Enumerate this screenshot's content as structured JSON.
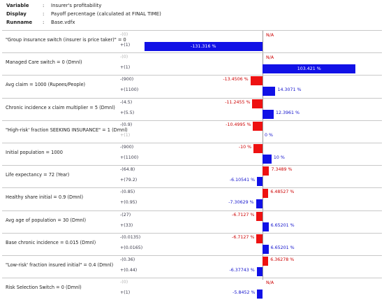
{
  "header": {
    "rows": [
      {
        "key": "Variable",
        "colon": ":",
        "value": "Insurer's profitability"
      },
      {
        "key": "Display",
        "colon": ":",
        "value": "Payoff percentage (calculated at FINAL TIME)"
      },
      {
        "key": "Runname",
        "colon": ":",
        "value": "Base.vdfx"
      }
    ]
  },
  "chart_data": {
    "type": "bar",
    "orientation": "horizontal",
    "grid": false,
    "colors": {
      "low": "#ee1111",
      "high": "#1111e6"
    },
    "rows": [
      {
        "label": "\"Group insurance switch (insurer is price taker)\" = 0",
        "low": {
          "text": "-(0)",
          "value": null,
          "value_text": "N/A",
          "dim": true
        },
        "high": {
          "text": "+(1)",
          "value": -131.316,
          "value_text": "-131.316 %",
          "dim": false
        }
      },
      {
        "label": "Managed Care switch = 0 (Dmnl)",
        "low": {
          "text": "-(0)",
          "value": null,
          "value_text": "N/A",
          "dim": true
        },
        "high": {
          "text": "+(1)",
          "value": 103.421,
          "value_text": "103.421 %",
          "dim": false
        }
      },
      {
        "label": "Avg claim = 1000 (Rupees/People)",
        "low": {
          "text": "-(900)",
          "value": -13.4506,
          "value_text": "-13.4506 %",
          "dim": false
        },
        "high": {
          "text": "+(1100)",
          "value": 14.3071,
          "value_text": "14.3071 %",
          "dim": false
        }
      },
      {
        "label": "Chronic incidence x claim multiplier = 5 (Dmnl)",
        "low": {
          "text": "-(4.5)",
          "value": -11.2455,
          "value_text": "-11.2455 %",
          "dim": false
        },
        "high": {
          "text": "+(5.5)",
          "value": 12.3961,
          "value_text": "12.3961 %",
          "dim": false
        }
      },
      {
        "label": "\"High-risk' fraction SEEKING INSURANCE\" = 1 (Dmnl)",
        "low": {
          "text": "-(0.9)",
          "value": -10.4995,
          "value_text": "-10.4995 %",
          "dim": false
        },
        "high": {
          "text": "+(1)",
          "value": 0,
          "value_text": "0 %",
          "dim": true
        }
      },
      {
        "label": "Initial population = 1000",
        "low": {
          "text": "-(900)",
          "value": -10,
          "value_text": "-10 %",
          "dim": false
        },
        "high": {
          "text": "+(1100)",
          "value": 10,
          "value_text": "10 %",
          "dim": false
        }
      },
      {
        "label": "Life expectancy = 72 (Year)",
        "low": {
          "text": "-(64.8)",
          "value": 7.3489,
          "value_text": "7.3489 %",
          "dim": false
        },
        "high": {
          "text": "+(79.2)",
          "value": -6.10541,
          "value_text": "-6.10541 %",
          "dim": false
        }
      },
      {
        "label": "Healthy share initial = 0.9 (Dmnl)",
        "low": {
          "text": "-(0.85)",
          "value": 6.48527,
          "value_text": "6.48527 %",
          "dim": false
        },
        "high": {
          "text": "+(0.95)",
          "value": -7.30629,
          "value_text": "-7.30629 %",
          "dim": false
        }
      },
      {
        "label": "Avg age of population = 30 (Dmnl)",
        "low": {
          "text": "-(27)",
          "value": -6.7127,
          "value_text": "-6.7127 %",
          "dim": false
        },
        "high": {
          "text": "+(33)",
          "value": 6.65201,
          "value_text": "6.65201 %",
          "dim": false
        }
      },
      {
        "label": "Base chronic incidence = 0.015 (Dmnl)",
        "low": {
          "text": "-(0.0135)",
          "value": -6.7127,
          "value_text": "-6.7127 %",
          "dim": false
        },
        "high": {
          "text": "+(0.0165)",
          "value": 6.65201,
          "value_text": "6.65201 %",
          "dim": false
        }
      },
      {
        "label": "\"Low-risk' fraction insured initial\" = 0.4 (Dmnl)",
        "low": {
          "text": "-(0.36)",
          "value": 6.36278,
          "value_text": "6.36278 %",
          "dim": false
        },
        "high": {
          "text": "+(0.44)",
          "value": -6.37743,
          "value_text": "-6.37743 %",
          "dim": false
        }
      },
      {
        "label": "Risk Selection Switch = 0 (Dmnl)",
        "low": {
          "text": "-(0)",
          "value": null,
          "value_text": "N/A",
          "dim": true
        },
        "high": {
          "text": "+(1)",
          "value": -5.8452,
          "value_text": "-5.8452 %",
          "dim": false
        }
      }
    ]
  }
}
